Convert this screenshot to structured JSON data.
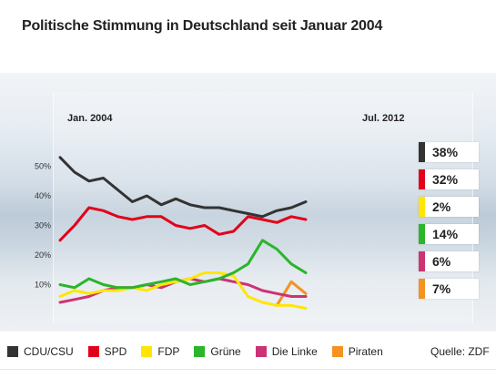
{
  "title": "Politische Stimmung in Deutschland seit Januar 2004",
  "source": "Quelle: ZDF",
  "chart_data": {
    "type": "line",
    "x_start_label": "Jan. 2004",
    "x_end_label": "Jul. 2012",
    "ylim": [
      0,
      60
    ],
    "y_ticks": [
      {
        "value": 10,
        "label": "10%"
      },
      {
        "value": 20,
        "label": "20%"
      },
      {
        "value": 30,
        "label": "30%"
      },
      {
        "value": 40,
        "label": "40%"
      },
      {
        "value": 50,
        "label": "50%"
      }
    ],
    "x": [
      "2004.0",
      "2004.5",
      "2005.0",
      "2005.5",
      "2006.0",
      "2006.5",
      "2007.0",
      "2007.5",
      "2008.0",
      "2008.5",
      "2009.0",
      "2009.5",
      "2010.0",
      "2010.5",
      "2011.0",
      "2011.5",
      "2012.0",
      "2012.5"
    ],
    "series": [
      {
        "name": "CDU/CSU",
        "color": "#333333",
        "current": "38%",
        "values": [
          53,
          48,
          45,
          46,
          42,
          38,
          40,
          37,
          39,
          37,
          36,
          36,
          35,
          34,
          33,
          35,
          36,
          38
        ]
      },
      {
        "name": "SPD",
        "color": "#e2001a",
        "current": "32%",
        "values": [
          25,
          30,
          36,
          35,
          33,
          32,
          33,
          33,
          30,
          29,
          30,
          27,
          28,
          33,
          32,
          31,
          33,
          32
        ]
      },
      {
        "name": "FDP",
        "color": "#ffe600",
        "current": "2%",
        "values": [
          6,
          8,
          7,
          8,
          8,
          9,
          8,
          10,
          11,
          12,
          14,
          14,
          13,
          6,
          4,
          3,
          3,
          2
        ]
      },
      {
        "name": "Grüne",
        "color": "#2ab52a",
        "current": "14%",
        "values": [
          10,
          9,
          12,
          10,
          9,
          9,
          10,
          11,
          12,
          10,
          11,
          12,
          14,
          17,
          25,
          22,
          17,
          14
        ]
      },
      {
        "name": "Die Linke",
        "color": "#cc3373",
        "current": "6%",
        "values": [
          4,
          5,
          6,
          8,
          9,
          9,
          10,
          9,
          11,
          12,
          11,
          12,
          11,
          10,
          8,
          7,
          6,
          6
        ]
      },
      {
        "name": "Piraten",
        "color": "#f39322",
        "current": "7%",
        "values": [
          null,
          null,
          null,
          null,
          null,
          null,
          null,
          null,
          null,
          null,
          null,
          null,
          null,
          null,
          null,
          3,
          11,
          7
        ]
      }
    ]
  },
  "legend": [
    {
      "label": "CDU/CSU",
      "color": "#333333"
    },
    {
      "label": "SPD",
      "color": "#e2001a"
    },
    {
      "label": "FDP",
      "color": "#ffe600"
    },
    {
      "label": "Grüne",
      "color": "#2ab52a"
    },
    {
      "label": "Die Linke",
      "color": "#cc3373"
    },
    {
      "label": "Piraten",
      "color": "#f39322"
    }
  ]
}
